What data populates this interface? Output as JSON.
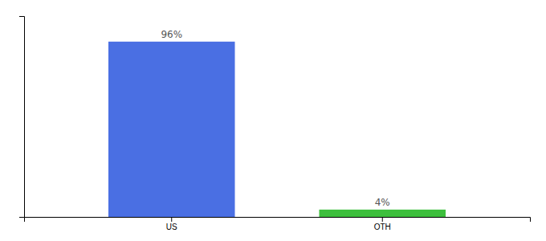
{
  "chart_data": {
    "type": "bar",
    "categories": [
      "US",
      "OTH"
    ],
    "values": [
      96,
      4
    ],
    "colors": [
      "#4a6fe3",
      "#3dbf3d"
    ],
    "value_labels": [
      "96%",
      "4%"
    ],
    "data_labels": true,
    "ylim": [
      0,
      110
    ],
    "tick_labels": "x"
  }
}
